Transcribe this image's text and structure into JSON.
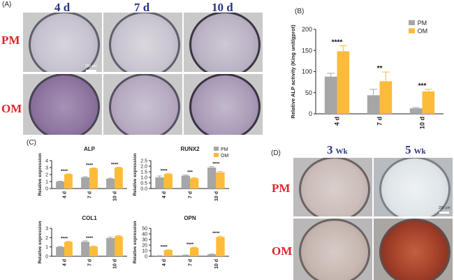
{
  "panels": {
    "A": {
      "label": "(A)",
      "columns": [
        "4 d",
        "7 d",
        "10 d"
      ],
      "rows": [
        "PM",
        "OM"
      ],
      "scale_bar": "200 μm"
    },
    "B": {
      "label": "(B)"
    },
    "C": {
      "label": "(C)"
    },
    "D": {
      "label": "(D)",
      "columns": [
        {
          "num": "3",
          "unit": "Wk"
        },
        {
          "num": "5",
          "unit": "Wk"
        }
      ],
      "rows": [
        "PM",
        "OM"
      ],
      "scale_bar": "200 μm"
    }
  },
  "colors": {
    "PM": "#a6a6a6",
    "OM": "#fdbb3a",
    "time_label": "#2a3580",
    "row_label": "#e0242a"
  },
  "chart_data": [
    {
      "id": "B",
      "type": "bar",
      "categories": [
        "4 d",
        "7 d",
        "10 d"
      ],
      "series": [
        {
          "name": "PM",
          "values": [
            88,
            44,
            13
          ],
          "errors": [
            8,
            14,
            2
          ]
        },
        {
          "name": "OM",
          "values": [
            148,
            77,
            53
          ],
          "errors": [
            13,
            22,
            5
          ]
        }
      ],
      "significance": [
        "****",
        "**",
        "***"
      ],
      "ylabel": "Relative ALP activity (King unit/gprot)",
      "ylim": [
        0,
        200
      ],
      "yticks": [
        "0",
        "50",
        "100",
        "150",
        "200"
      ],
      "legend": "top-right",
      "grid": false
    },
    {
      "id": "C1",
      "type": "bar",
      "title": "ALP",
      "categories": [
        "4 d",
        "7 d",
        "10 d"
      ],
      "series": [
        {
          "name": "PM",
          "values": [
            1.0,
            1.6,
            1.4
          ],
          "errors": [
            0.05,
            0.1,
            0.08
          ]
        },
        {
          "name": "OM",
          "values": [
            2.05,
            2.9,
            3.0
          ],
          "errors": [
            0.05,
            0.05,
            0.05
          ]
        }
      ],
      "significance": [
        "****",
        "****",
        "****"
      ],
      "ylabel": "Relative expression",
      "ylim": [
        0,
        4
      ],
      "yticks": [
        "0",
        "1",
        "2",
        "3",
        "4"
      ],
      "legend": "none",
      "grid": false
    },
    {
      "id": "C2",
      "type": "bar",
      "title": "RUNX2",
      "categories": [
        "4 d",
        "7 d",
        "10 d"
      ],
      "series": [
        {
          "name": "PM",
          "values": [
            1.0,
            1.15,
            1.88
          ],
          "errors": [
            0.12,
            0.06,
            0.08
          ]
        },
        {
          "name": "OM",
          "values": [
            1.3,
            0.92,
            1.45
          ],
          "errors": [
            0.05,
            0.05,
            0.08
          ]
        }
      ],
      "significance": [
        "****",
        "***",
        "****"
      ],
      "ylabel": "Relative expression",
      "ylim": [
        0,
        2.5
      ],
      "yticks": [
        "0.0",
        "0.5",
        "1.0",
        "1.5",
        "2.0",
        "2.5"
      ],
      "legend": "top-right",
      "grid": false
    },
    {
      "id": "C3",
      "type": "bar",
      "title": "COL1",
      "categories": [
        "4 d",
        "7 d",
        "10 d"
      ],
      "series": [
        {
          "name": "PM",
          "values": [
            1.0,
            1.55,
            1.95
          ],
          "errors": [
            0.05,
            0.1,
            0.1
          ]
        },
        {
          "name": "OM",
          "values": [
            1.55,
            1.05,
            2.15
          ],
          "errors": [
            0.05,
            0.05,
            0.06
          ]
        }
      ],
      "significance": [
        "****",
        "****",
        ""
      ],
      "ylabel": "Relative expression",
      "ylim": [
        0,
        3
      ],
      "yticks": [
        "0",
        "1",
        "2",
        "3"
      ],
      "legend": "none",
      "grid": false
    },
    {
      "id": "C4",
      "type": "bar",
      "title": "OPN",
      "categories": [
        "4 d",
        "7 d",
        "10 d"
      ],
      "series": [
        {
          "name": "PM",
          "values": [
            1.0,
            2.0,
            3.5
          ],
          "errors": [
            0.2,
            0.3,
            0.4
          ]
        },
        {
          "name": "OM",
          "values": [
            11.0,
            15.5,
            34.5
          ],
          "errors": [
            0.6,
            0.8,
            1.5
          ]
        }
      ],
      "significance": [
        "****",
        "****",
        "****"
      ],
      "ylabel": "Relative expression",
      "ylim": [
        0,
        50
      ],
      "yticks": [
        "0",
        "10",
        "20",
        "30",
        "40",
        "50"
      ],
      "legend": "none",
      "grid": false
    }
  ]
}
